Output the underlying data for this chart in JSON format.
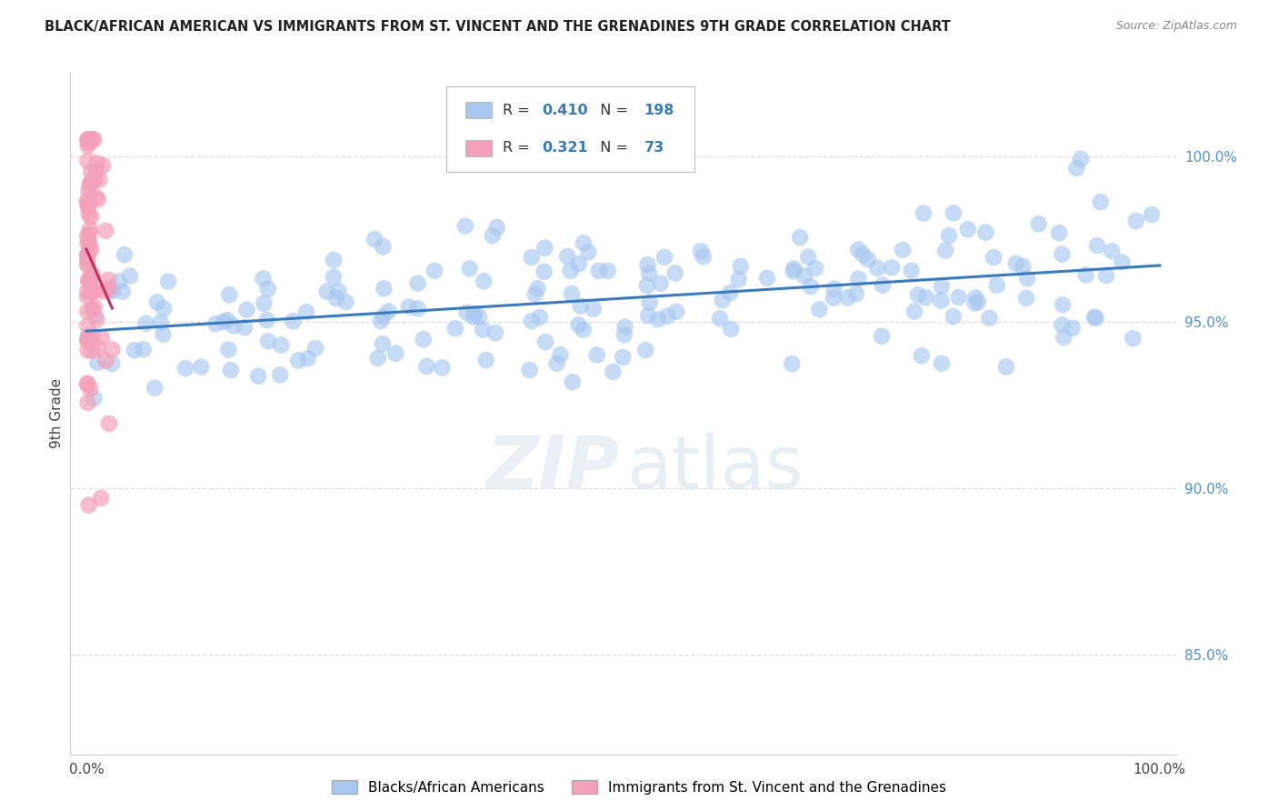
{
  "title": "BLACK/AFRICAN AMERICAN VS IMMIGRANTS FROM ST. VINCENT AND THE GRENADINES 9TH GRADE CORRELATION CHART",
  "source": "Source: ZipAtlas.com",
  "ylabel": "9th Grade",
  "blue_R": "0.410",
  "blue_N": "198",
  "pink_R": "0.321",
  "pink_N": "73",
  "blue_color": "#a8c8f0",
  "pink_color": "#f4a0b8",
  "blue_line_color": "#3a7abf",
  "pink_line_color": "#c03060",
  "legend_label_blue": "Blacks/African Americans",
  "legend_label_pink": "Immigrants from St. Vincent and the Grenadines",
  "ylim": [
    0.82,
    1.025
  ],
  "ytick_values": [
    0.85,
    0.9,
    0.95,
    1.0
  ],
  "ytick_labels": [
    "85.0%",
    "90.0%",
    "95.0%",
    "100.0%"
  ],
  "grid_color": "#dddddd",
  "watermark_zip_color": "#d0d8e8",
  "watermark_atlas_color": "#c8d8e8"
}
